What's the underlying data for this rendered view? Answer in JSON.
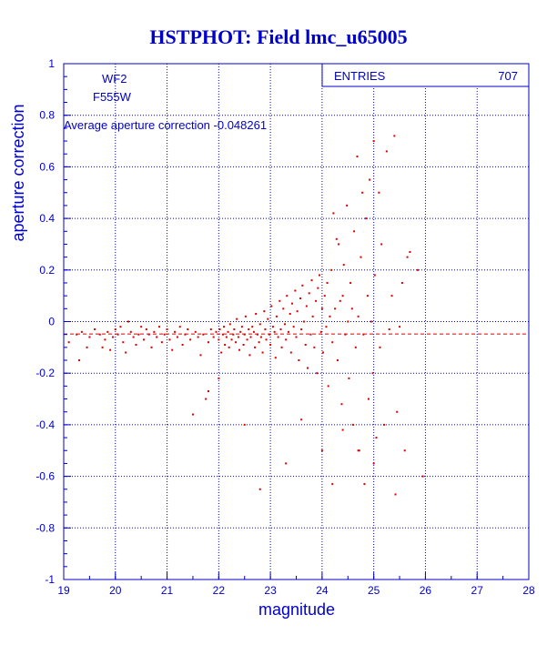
{
  "colors": {
    "axis": "#0000cc",
    "title": "#0000cc",
    "points": "#dd0000",
    "mean_line": "#dd0000",
    "background": "#ffffff"
  },
  "chart_data": {
    "type": "scatter",
    "title": "HSTPHOT: Field lmc_u65005",
    "xlabel": "magnitude",
    "ylabel": "aperture correction",
    "xlim": [
      19,
      28
    ],
    "ylim": [
      -1,
      1
    ],
    "xticks": [
      "19",
      "20",
      "21",
      "22",
      "23",
      "24",
      "25",
      "26",
      "27",
      "28"
    ],
    "yticks": [
      "1",
      "0.8",
      "0.6",
      "0.4",
      "0.2",
      "0",
      "-0.2",
      "-0.4",
      "-0.6",
      "-0.8",
      "-1"
    ],
    "grid": true,
    "annotations": {
      "camera": "WF2",
      "filter": "F555W",
      "average_text": "Average aperture correction -0.048261"
    },
    "stats_box": {
      "label": "ENTRIES",
      "value": "707"
    },
    "mean_line_y": -0.048261,
    "points": [
      [
        19.1,
        -0.08
      ],
      [
        19.25,
        -0.05
      ],
      [
        19.3,
        -0.15
      ],
      [
        19.35,
        -0.04
      ],
      [
        19.45,
        -0.1
      ],
      [
        19.5,
        -0.06
      ],
      [
        19.6,
        -0.03
      ],
      [
        19.7,
        -0.05
      ],
      [
        19.75,
        -0.1
      ],
      [
        19.8,
        -0.07
      ],
      [
        19.85,
        -0.04
      ],
      [
        19.9,
        -0.11
      ],
      [
        19.95,
        -0.06
      ],
      [
        20.0,
        -0.03
      ],
      [
        20.05,
        -0.05
      ],
      [
        20.1,
        -0.02
      ],
      [
        20.15,
        -0.08
      ],
      [
        20.2,
        -0.12
      ],
      [
        20.25,
        0.0
      ],
      [
        20.3,
        -0.04
      ],
      [
        20.35,
        -0.06
      ],
      [
        20.4,
        -0.09
      ],
      [
        20.45,
        -0.05
      ],
      [
        20.5,
        -0.02
      ],
      [
        20.55,
        -0.07
      ],
      [
        20.6,
        -0.03
      ],
      [
        20.65,
        -0.05
      ],
      [
        20.7,
        -0.1
      ],
      [
        20.75,
        -0.04
      ],
      [
        20.8,
        -0.06
      ],
      [
        20.85,
        -0.02
      ],
      [
        20.9,
        -0.08
      ],
      [
        20.95,
        -0.05
      ],
      [
        21.0,
        -0.03
      ],
      [
        21.05,
        -0.07
      ],
      [
        21.1,
        -0.11
      ],
      [
        21.15,
        -0.04
      ],
      [
        21.2,
        -0.06
      ],
      [
        21.25,
        -0.02
      ],
      [
        21.3,
        -0.09
      ],
      [
        21.35,
        -0.05
      ],
      [
        21.4,
        -0.03
      ],
      [
        21.45,
        -0.07
      ],
      [
        21.5,
        -0.36
      ],
      [
        21.55,
        -0.04
      ],
      [
        21.6,
        -0.06
      ],
      [
        21.65,
        -0.13
      ],
      [
        21.7,
        -0.05
      ],
      [
        21.75,
        -0.3
      ],
      [
        21.8,
        -0.08
      ],
      [
        21.85,
        -0.03
      ],
      [
        21.9,
        -0.06
      ],
      [
        21.95,
        -0.04
      ],
      [
        22.0,
        -0.07
      ],
      [
        22.02,
        -0.03
      ],
      [
        22.05,
        -0.12
      ],
      [
        22.08,
        -0.05
      ],
      [
        22.1,
        -0.02
      ],
      [
        22.12,
        -0.09
      ],
      [
        22.15,
        -0.06
      ],
      [
        22.18,
        -0.04
      ],
      [
        22.2,
        -0.1
      ],
      [
        22.22,
        -0.01
      ],
      [
        22.25,
        -0.07
      ],
      [
        22.28,
        -0.05
      ],
      [
        22.3,
        -0.03
      ],
      [
        22.33,
        -0.08
      ],
      [
        22.35,
        0.01
      ],
      [
        22.38,
        -0.06
      ],
      [
        22.4,
        -0.11
      ],
      [
        22.42,
        -0.04
      ],
      [
        22.45,
        -0.02
      ],
      [
        22.48,
        -0.09
      ],
      [
        22.5,
        -0.05
      ],
      [
        22.52,
        0.02
      ],
      [
        22.55,
        -0.07
      ],
      [
        22.58,
        -0.03
      ],
      [
        22.6,
        -0.13
      ],
      [
        22.62,
        -0.06
      ],
      [
        22.65,
        -0.02
      ],
      [
        22.68,
        -0.04
      ],
      [
        22.7,
        -0.1
      ],
      [
        22.72,
        0.03
      ],
      [
        22.75,
        -0.05
      ],
      [
        22.78,
        -0.08
      ],
      [
        22.8,
        -0.01
      ],
      [
        22.82,
        -0.06
      ],
      [
        22.85,
        -0.12
      ],
      [
        22.88,
        0.04
      ],
      [
        22.9,
        -0.03
      ],
      [
        22.92,
        -0.07
      ],
      [
        22.95,
        0.01
      ],
      [
        22.98,
        -0.05
      ],
      [
        23.0,
        -0.09
      ],
      [
        23.02,
        0.06
      ],
      [
        23.05,
        -0.02
      ],
      [
        23.08,
        -0.04
      ],
      [
        23.1,
        -0.14
      ],
      [
        23.12,
        0.02
      ],
      [
        23.15,
        -0.06
      ],
      [
        23.18,
        0.08
      ],
      [
        23.2,
        -0.03
      ],
      [
        23.22,
        -0.1
      ],
      [
        23.25,
        0.05
      ],
      [
        23.28,
        -0.01
      ],
      [
        23.3,
        -0.07
      ],
      [
        23.32,
        0.1
      ],
      [
        23.35,
        -0.04
      ],
      [
        23.38,
        0.03
      ],
      [
        23.4,
        -0.12
      ],
      [
        23.42,
        0.07
      ],
      [
        23.45,
        -0.02
      ],
      [
        23.48,
        0.12
      ],
      [
        23.5,
        -0.06
      ],
      [
        23.52,
        0.04
      ],
      [
        23.55,
        -0.15
      ],
      [
        23.58,
        0.09
      ],
      [
        23.6,
        -0.03
      ],
      [
        23.62,
        0.14
      ],
      [
        23.65,
        0.0
      ],
      [
        23.68,
        -0.09
      ],
      [
        23.7,
        0.06
      ],
      [
        23.72,
        -0.18
      ],
      [
        23.75,
        0.11
      ],
      [
        23.78,
        -0.05
      ],
      [
        23.8,
        0.16
      ],
      [
        23.82,
        0.02
      ],
      [
        23.85,
        -0.1
      ],
      [
        23.88,
        0.08
      ],
      [
        23.9,
        -0.2
      ],
      [
        23.92,
        0.13
      ],
      [
        23.95,
        0.18
      ],
      [
        23.98,
        -0.04
      ],
      [
        24.0,
        0.05
      ],
      [
        24.02,
        -0.12
      ],
      [
        24.05,
        0.1
      ],
      [
        24.08,
        -0.02
      ],
      [
        24.1,
        0.15
      ],
      [
        24.12,
        -0.25
      ],
      [
        24.15,
        0.02
      ],
      [
        24.18,
        0.2
      ],
      [
        24.2,
        -0.08
      ],
      [
        24.22,
        0.42
      ],
      [
        24.25,
        0.05
      ],
      [
        24.28,
        0.32
      ],
      [
        24.3,
        -0.15
      ],
      [
        24.32,
        0.3
      ],
      [
        24.35,
        0.08
      ],
      [
        24.38,
        -0.32
      ],
      [
        24.4,
        0.1
      ],
      [
        24.42,
        0.22
      ],
      [
        24.45,
        -0.05
      ],
      [
        24.48,
        0.45
      ],
      [
        24.5,
        0.0
      ],
      [
        24.52,
        -0.22
      ],
      [
        24.55,
        0.15
      ],
      [
        24.58,
        0.05
      ],
      [
        24.6,
        -0.4
      ],
      [
        24.62,
        0.35
      ],
      [
        24.65,
        -0.1
      ],
      [
        24.68,
        0.64
      ],
      [
        24.7,
        0.02
      ],
      [
        24.72,
        -0.5
      ],
      [
        24.75,
        0.25
      ],
      [
        24.78,
        0.5
      ],
      [
        24.8,
        -0.05
      ],
      [
        24.82,
        -0.63
      ],
      [
        24.85,
        0.4
      ],
      [
        24.88,
        0.1
      ],
      [
        24.9,
        -0.3
      ],
      [
        24.92,
        0.55
      ],
      [
        24.95,
        0.0
      ],
      [
        24.98,
        -0.2
      ],
      [
        25.0,
        0.7
      ],
      [
        25.02,
        0.18
      ],
      [
        25.05,
        -0.45
      ],
      [
        25.1,
        0.5
      ],
      [
        25.12,
        -0.1
      ],
      [
        25.15,
        0.3
      ],
      [
        25.2,
        -0.4
      ],
      [
        25.25,
        0.66
      ],
      [
        25.3,
        -0.03
      ],
      [
        25.35,
        0.1
      ],
      [
        25.4,
        0.72
      ],
      [
        25.42,
        -0.67
      ],
      [
        25.45,
        -0.35
      ],
      [
        25.5,
        -0.02
      ],
      [
        25.55,
        0.15
      ],
      [
        25.6,
        -0.5
      ],
      [
        25.65,
        0.25
      ],
      [
        25.7,
        0.27
      ],
      [
        25.85,
        0.2
      ],
      [
        25.95,
        -0.6
      ],
      [
        24.0,
        -0.5
      ],
      [
        24.2,
        -0.63
      ],
      [
        24.4,
        -0.42
      ],
      [
        24.7,
        -0.5
      ],
      [
        25.0,
        -0.55
      ],
      [
        22.0,
        -0.22
      ],
      [
        22.5,
        -0.4
      ],
      [
        22.8,
        -0.65
      ],
      [
        23.3,
        -0.55
      ],
      [
        23.6,
        -0.38
      ],
      [
        21.8,
        -0.27
      ]
    ]
  }
}
